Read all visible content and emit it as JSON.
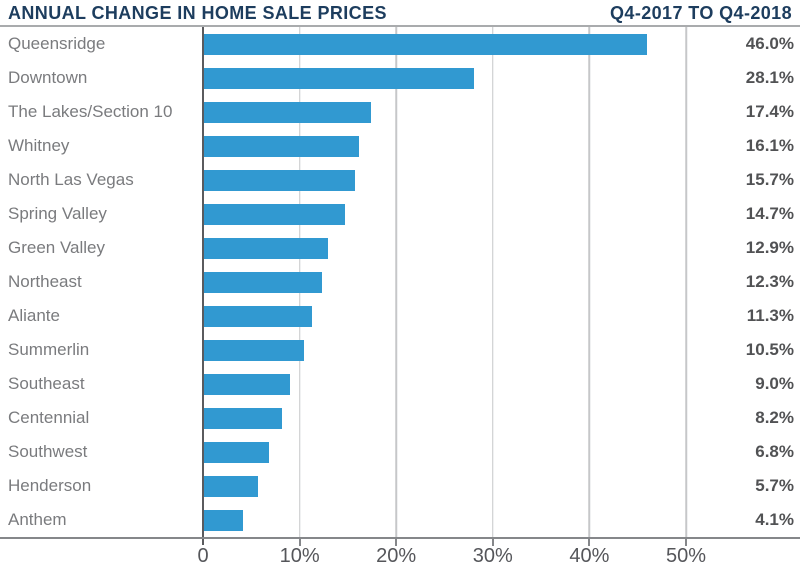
{
  "header": {
    "title": "ANNUAL CHANGE IN HOME SALE PRICES",
    "subtitle": "Q4-2017 TO Q4-2018"
  },
  "colors": {
    "bar": "#3199d1",
    "title": "#1d3d5e",
    "label": "#7a7b7e",
    "value": "#515254",
    "gridline": "#c6c7c9",
    "zero_line": "#5a5b5e",
    "axis": "#85878a",
    "header_rule": "#a9abad",
    "tick_text": "#55565a"
  },
  "chart_data": {
    "type": "bar",
    "orientation": "horizontal",
    "title": "ANNUAL CHANGE IN HOME SALE PRICES",
    "subtitle": "Q4-2017 TO Q4-2018",
    "categories": [
      "Queensridge",
      "Downtown",
      "The Lakes/Section 10",
      "Whitney",
      "North Las Vegas",
      "Spring Valley",
      "Green Valley",
      "Northeast",
      "Aliante",
      "Summerlin",
      "Southeast",
      "Centennial",
      "Southwest",
      "Henderson",
      "Anthem"
    ],
    "values": [
      46.0,
      28.1,
      17.4,
      16.1,
      15.7,
      14.7,
      12.9,
      12.3,
      11.3,
      10.5,
      9.0,
      8.2,
      6.8,
      5.7,
      4.1
    ],
    "value_labels": [
      "46.0%",
      "28.1%",
      "17.4%",
      "16.1%",
      "15.7%",
      "14.7%",
      "12.9%",
      "12.3%",
      "11.3%",
      "10.5%",
      "9.0%",
      "8.2%",
      "6.8%",
      "5.7%",
      "4.1%"
    ],
    "xlim": [
      0,
      50
    ],
    "x_ticks": [
      {
        "value": 0,
        "label": "0"
      },
      {
        "value": 10,
        "label": "10%"
      },
      {
        "value": 20,
        "label": "20%"
      },
      {
        "value": 30,
        "label": "30%"
      },
      {
        "value": 40,
        "label": "40%"
      },
      {
        "value": 50,
        "label": "50%"
      }
    ],
    "grid": true,
    "legend": false
  }
}
